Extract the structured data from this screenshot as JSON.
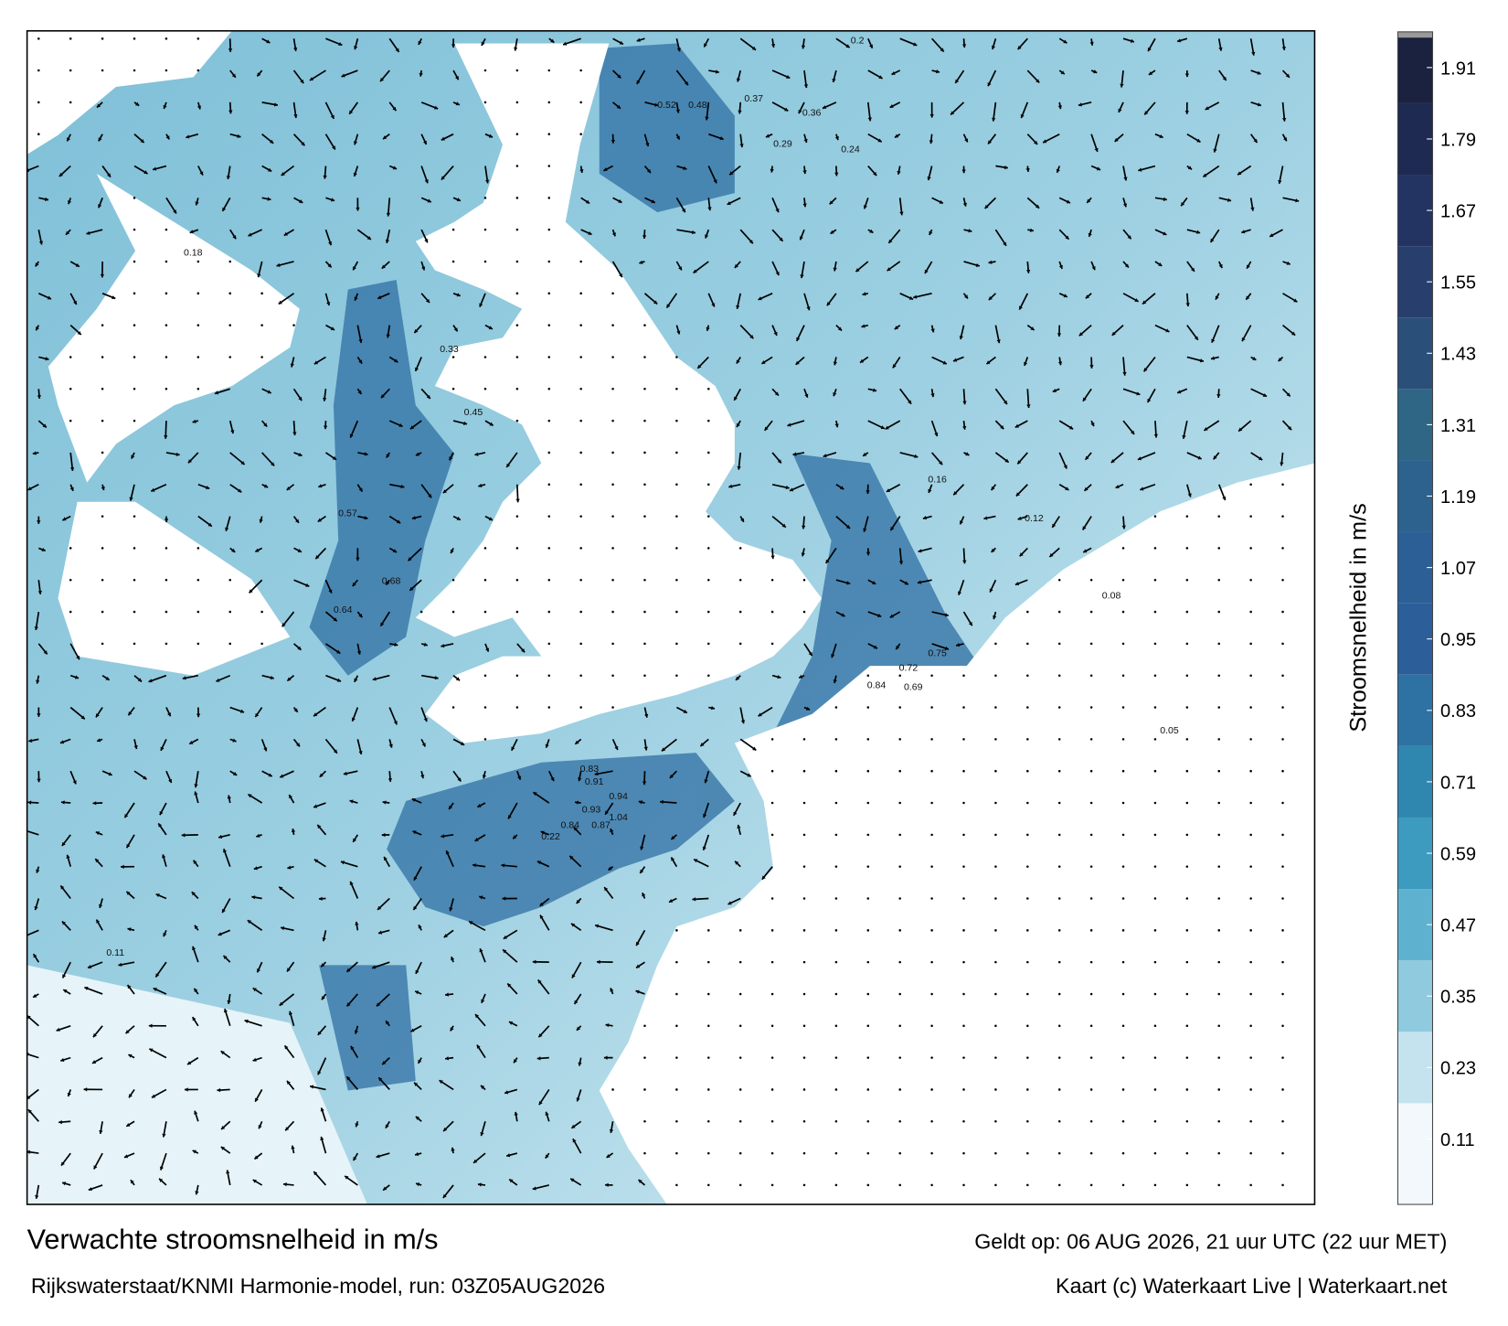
{
  "title": "Verwachte stroomsnelheid in m/s",
  "subtitle": "Rijkswaterstaat/KNMI Harmonie-model, run: 03Z05AUG2026",
  "valid_time": "Geldt op: 06 AUG 2026, 21 uur UTC (22 uur MET)",
  "credit": "Kaart (c) Waterkaart Live | Waterkaart.net",
  "colorbar": {
    "label": "Stroomsnelheid in m/s",
    "ylim": [
      0,
      1.97
    ],
    "yticks": [
      0.11,
      0.23,
      0.35,
      0.47,
      0.59,
      0.71,
      0.83,
      0.95,
      1.07,
      1.19,
      1.31,
      1.43,
      1.55,
      1.67,
      1.79,
      1.91
    ],
    "colors": [
      "#f2f8fb",
      "#c4e3ee",
      "#8fcadf",
      "#5fb2cf",
      "#3c9bbf",
      "#2f86ae",
      "#2d72a2",
      "#2c5e99",
      "#2c5f95",
      "#2d618e",
      "#2f6685",
      "#2a4f79",
      "#283f6d",
      "#243462",
      "#1f2a52",
      "#1a2240"
    ]
  },
  "map_labels": [
    "1.04",
    "0.94",
    "0.91",
    "0.83",
    "0.84",
    "0.87",
    "0.93",
    "0.68",
    "0.64",
    "0.57",
    "0.72",
    "0.69",
    "0.75",
    "0.84",
    "0.52",
    "0.48",
    "0.37",
    "0.29",
    "0.36",
    "0.24",
    "0.2",
    "0.16",
    "0.12",
    "0.08",
    "0.05",
    "0.45",
    "0.33",
    "0.22",
    "0.18",
    "0.11"
  ]
}
